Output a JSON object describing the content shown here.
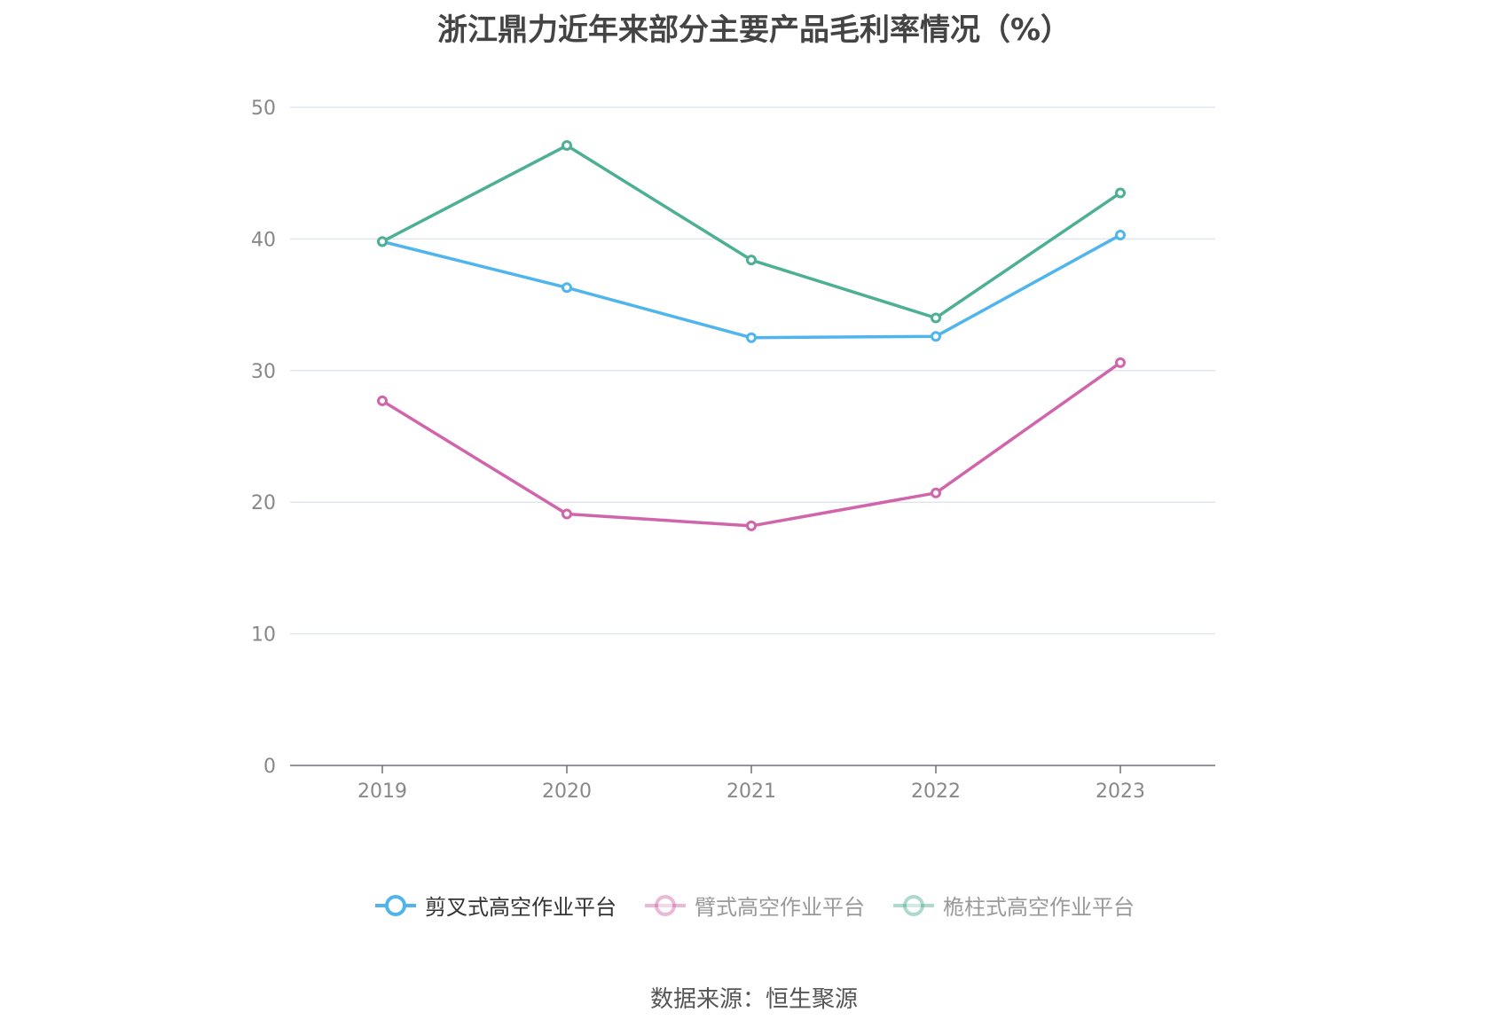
{
  "title": "浙江鼎力近年来部分主要产品毛利率情况（%）",
  "source": "数据来源：恒生聚源",
  "chart_data": {
    "type": "line",
    "title": "浙江鼎力近年来部分主要产品毛利率情况（%）",
    "x": [
      "2019",
      "2020",
      "2021",
      "2022",
      "2023"
    ],
    "y_ticks": [
      "0",
      "10",
      "20",
      "30",
      "40",
      "50"
    ],
    "ylim": [
      0,
      50
    ],
    "grid": true,
    "legend_position": "bottom",
    "series": [
      {
        "name": "剪叉式高空作业平台",
        "color": "#4fb5ec",
        "values": [
          39.8,
          36.3,
          32.5,
          32.6,
          40.3
        ],
        "active": true
      },
      {
        "name": "臂式高空作业平台",
        "color": "#d165ab",
        "values": [
          27.7,
          19.1,
          18.2,
          20.7,
          30.6
        ],
        "active": false
      },
      {
        "name": "桅柱式高空作业平台",
        "color": "#4daf94",
        "values": [
          39.8,
          47.1,
          38.4,
          34.0,
          43.5
        ],
        "active": false
      }
    ]
  }
}
